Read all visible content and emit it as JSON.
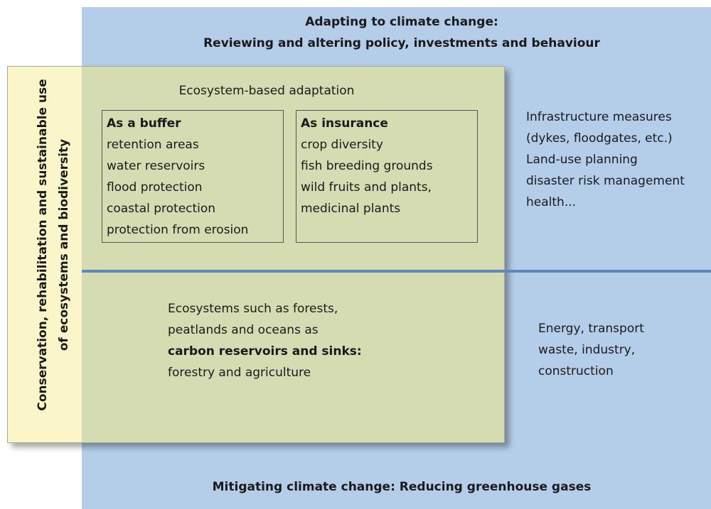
{
  "adaptation_header": {
    "lines": [
      "Adapting to climate change:",
      "Reviewing and altering policy, investments and behaviour"
    ]
  },
  "mitigation_footer": "Mitigating climate change: Reducing greenhouse gases",
  "side_label": {
    "lines": [
      "Conservation, rehabilitation and sustainable use",
      "of ecosystems and biodiversity"
    ]
  },
  "ecosystem_adaptation": {
    "title": "Ecosystem-based adaptation",
    "buffer": {
      "title": "As a buffer",
      "items": [
        "retention areas",
        "water reservoirs",
        "flood protection",
        "coastal protection",
        "protection from erosion"
      ]
    },
    "insurance": {
      "title": "As insurance",
      "items": [
        "crop diversity",
        "fish breeding grounds",
        "wild fruits and plants,",
        "medicinal plants"
      ]
    }
  },
  "ecosystem_mitigation": {
    "lines": [
      "Ecosystems such as forests,",
      "peatlands and oceans as",
      "carbon reservoirs and sinks:",
      "forestry and agriculture"
    ]
  },
  "other_adaptation": {
    "lines": [
      "Infrastructure measures",
      "(dykes, floodgates, etc.)",
      "Land-use planning",
      "disaster risk management",
      "health..."
    ]
  },
  "other_mitigation": {
    "lines": [
      "Energy, transport",
      "waste, industry,",
      "construction"
    ]
  }
}
